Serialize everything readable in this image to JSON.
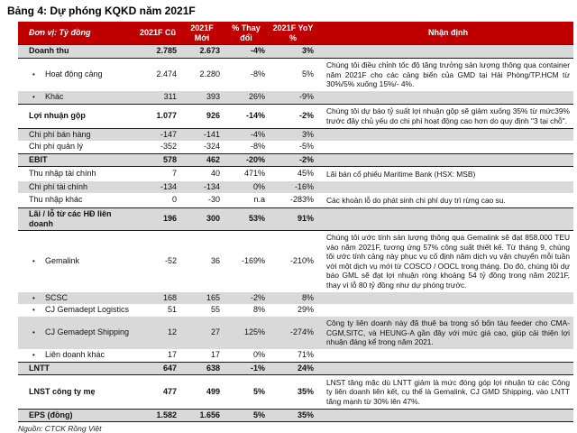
{
  "title": "Bảng 4: Dự phóng KQKD năm 2021F",
  "source": "Nguồn: CTCK Rồng Việt",
  "icons": {
    "bullet": "•"
  },
  "colors": {
    "header_bg": "#C00000",
    "stripe": "#D9D9D9"
  },
  "table": {
    "header": {
      "unit": "Đơn vị: Tỷ đồng",
      "col_old": "2021F Cũ",
      "col_new": "2021F Mới",
      "col_change": "% Thay đổi",
      "col_yoy": "2021F YoY %",
      "col_note": "Nhận định"
    },
    "rows": [
      {
        "label": "Doanh thu",
        "old": "2.785",
        "new": "2.673",
        "change": "-4%",
        "yoy": "3%",
        "note": ""
      },
      {
        "label": "Hoạt động cảng",
        "old": "2.474",
        "new": "2.280",
        "change": "-8%",
        "yoy": "5%",
        "note": "Chúng tôi điều chỉnh tốc độ tăng trưởng sản lượng thông qua container năm 2021F cho các cảng biển của GMD tại Hải Phòng/TP.HCM từ 30%/5% xuống 15%/- 4%."
      },
      {
        "label": "Khác",
        "old": "311",
        "new": "393",
        "change": "26%",
        "yoy": "-9%",
        "note": ""
      },
      {
        "label": "Lợi nhuận gộp",
        "old": "1.077",
        "new": "926",
        "change": "-14%",
        "yoy": "-2%",
        "note": "Chúng tôi dự báo tỷ suất lợi nhuận gộp sẽ giảm xuống 35% từ mức39% trước đây chủ yếu do chi phí hoạt động cao hơn do quy định \"3 tại chỗ\"."
      },
      {
        "label": "Chi phí bán hàng",
        "old": "-147",
        "new": "-141",
        "change": "-4%",
        "yoy": "3%",
        "note": ""
      },
      {
        "label": "Chi phí quản lý",
        "old": "-352",
        "new": "-324",
        "change": "-8%",
        "yoy": "-5%",
        "note": ""
      },
      {
        "label": "EBIT",
        "old": "578",
        "new": "462",
        "change": "-20%",
        "yoy": "-2%",
        "note": ""
      },
      {
        "label": "Thu nhập tài chính",
        "old": "7",
        "new": "40",
        "change": "471%",
        "yoy": "45%",
        "note": "Lãi bán cổ phiếu Maritime Bank (HSX: MSB)"
      },
      {
        "label": "Chi phí tài chính",
        "old": "-134",
        "new": "-134",
        "change": "0%",
        "yoy": "-16%",
        "note": ""
      },
      {
        "label": "Thu nhập khác",
        "old": "0",
        "new": "-30",
        "change": "n.a",
        "yoy": "-283%",
        "note": "Các khoản lỗ do phát sinh chi phí duy trì rừng cao su."
      },
      {
        "label": "Lãi / lỗ từ các HĐ liên doanh",
        "old": "196",
        "new": "300",
        "change": "53%",
        "yoy": "91%",
        "note": ""
      },
      {
        "label": "Gemalink",
        "old": "-52",
        "new": "36",
        "change": "-169%",
        "yoy": "-210%",
        "note": "Chúng tôi ước tính sản lượng thông qua Gemalink sẽ đạt 858.000 TEU vào năm 2021F, tương ứng 57% công suất thiết kế. Từ tháng 9, chúng tôi ước tính cảng này phục vụ cố định năm dịch vụ vận chuyển mỗi tuần với một dịch vụ mới từ COSCO / OOCL trong tháng. Do đó, chúng tôi dự báo GML sẽ đạt lợi nhuận ròng khoảng 54 tỷ đồng trong năm 2021F, thay vì lỗ 80 tỷ đồng như dự phóng trước."
      },
      {
        "label": "SCSC",
        "old": "168",
        "new": "165",
        "change": "-2%",
        "yoy": "8%",
        "note": ""
      },
      {
        "label": "CJ Gemadept Logistics",
        "old": "51",
        "new": "55",
        "change": "8%",
        "yoy": "29%",
        "note": ""
      },
      {
        "label": "CJ Gemadept Shipping",
        "old": "12",
        "new": "27",
        "change": "125%",
        "yoy": "-274%",
        "note": "Công ty liên doanh này đã thuê ba trong số bốn tàu feeder cho CMA-CGM,SITC, và HEUNG-A gần đây với mức giá cao, giúp cải thiện lợi nhuận đáng kể trong năm 2021."
      },
      {
        "label": "Liên doanh khác",
        "old": "17",
        "new": "17",
        "change": "0%",
        "yoy": "71%",
        "note": ""
      },
      {
        "label": "LNTT",
        "old": "647",
        "new": "638",
        "change": "-1%",
        "yoy": "24%",
        "note": ""
      },
      {
        "label": "LNST công ty mẹ",
        "old": "477",
        "new": "499",
        "change": "5%",
        "yoy": "35%",
        "note": "LNST tăng mặc dù LNTT giảm là mức đóng góp lợi nhuận từ các Công ty liên doanh liên kết, cụ thể là Gemalink, CJ GMD Shipping, vào LNTT tăng mạnh từ 30% lên 47%."
      },
      {
        "label": "EPS (đồng)",
        "old": "1.582",
        "new": "1.656",
        "change": "5%",
        "yoy": "35%",
        "note": ""
      }
    ]
  }
}
